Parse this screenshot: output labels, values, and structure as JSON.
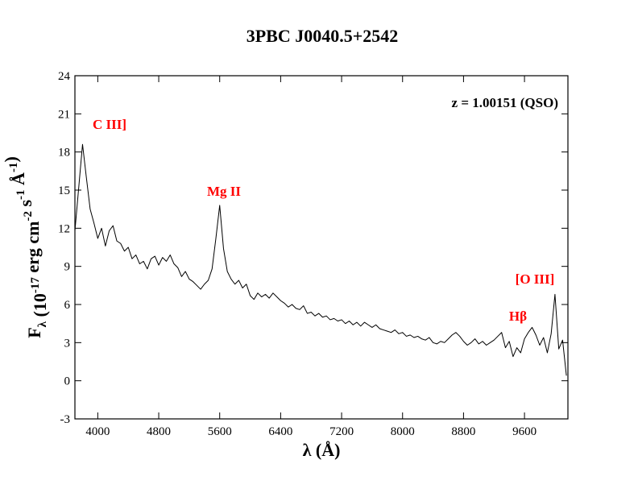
{
  "chart_data": {
    "type": "line",
    "title": "3PBC J0040.5+2542",
    "xlabel": [
      "λ (Å)"
    ],
    "ylabel": [
      "F",
      {
        "sub": "λ"
      },
      " (10",
      {
        "sup": "-17"
      },
      " erg cm",
      {
        "sup": "-2"
      },
      " s",
      {
        "sup": "-1"
      },
      " Å",
      {
        "sup": "-1"
      },
      ")"
    ],
    "annotations": [
      "z = 1.00151 (QSO)",
      "C III]",
      "Mg II",
      "Hβ",
      "[O III]"
    ],
    "xlim": [
      3700,
      10170
    ],
    "ylim": [
      -3,
      24
    ],
    "xticks": [
      4000,
      4800,
      5600,
      6400,
      7200,
      8000,
      8800,
      9600
    ],
    "yticks": [
      -3,
      0,
      3,
      6,
      9,
      12,
      15,
      18,
      21,
      24
    ],
    "series": [
      {
        "color": "#000000",
        "x": [
          3700,
          3750,
          3800,
          3850,
          3900,
          3950,
          4000,
          4050,
          4100,
          4150,
          4200,
          4250,
          4300,
          4350,
          4400,
          4450,
          4500,
          4550,
          4600,
          4650,
          4700,
          4750,
          4800,
          4850,
          4900,
          4950,
          5000,
          5050,
          5100,
          5150,
          5200,
          5250,
          5300,
          5350,
          5400,
          5450,
          5500,
          5550,
          5600,
          5650,
          5700,
          5750,
          5800,
          5850,
          5900,
          5950,
          6000,
          6050,
          6100,
          6150,
          6200,
          6250,
          6300,
          6350,
          6400,
          6450,
          6500,
          6550,
          6600,
          6650,
          6700,
          6750,
          6800,
          6850,
          6900,
          6950,
          7000,
          7050,
          7100,
          7150,
          7200,
          7250,
          7300,
          7350,
          7400,
          7450,
          7500,
          7550,
          7600,
          7650,
          7700,
          7750,
          7800,
          7850,
          7900,
          7950,
          8000,
          8050,
          8100,
          8150,
          8200,
          8250,
          8300,
          8350,
          8400,
          8450,
          8500,
          8550,
          8600,
          8650,
          8700,
          8750,
          8800,
          8850,
          8900,
          8950,
          9000,
          9050,
          9100,
          9150,
          9200,
          9250,
          9300,
          9350,
          9400,
          9450,
          9500,
          9550,
          9600,
          9650,
          9700,
          9750,
          9800,
          9850,
          9900,
          9950,
          10000,
          10050,
          10100,
          10150
        ],
        "values": [
          11.8,
          15.2,
          18.6,
          16.0,
          13.5,
          12.4,
          11.2,
          12.0,
          10.6,
          11.8,
          12.2,
          11.0,
          10.8,
          10.2,
          10.5,
          9.6,
          9.9,
          9.2,
          9.4,
          8.8,
          9.6,
          9.8,
          9.1,
          9.7,
          9.4,
          9.9,
          9.2,
          8.9,
          8.2,
          8.6,
          8.0,
          7.8,
          7.5,
          7.2,
          7.6,
          7.9,
          8.8,
          11.2,
          13.8,
          10.4,
          8.6,
          8.0,
          7.6,
          7.9,
          7.3,
          7.6,
          6.7,
          6.4,
          6.9,
          6.6,
          6.8,
          6.5,
          6.9,
          6.6,
          6.3,
          6.1,
          5.8,
          6.0,
          5.7,
          5.6,
          5.9,
          5.3,
          5.4,
          5.1,
          5.3,
          5.0,
          5.1,
          4.8,
          4.9,
          4.7,
          4.8,
          4.5,
          4.7,
          4.4,
          4.6,
          4.3,
          4.6,
          4.4,
          4.2,
          4.4,
          4.1,
          4.0,
          3.9,
          3.8,
          4.0,
          3.7,
          3.8,
          3.5,
          3.6,
          3.4,
          3.5,
          3.3,
          3.2,
          3.4,
          3.0,
          2.9,
          3.1,
          3.0,
          3.3,
          3.6,
          3.8,
          3.5,
          3.1,
          2.8,
          3.0,
          3.3,
          2.9,
          3.1,
          2.8,
          3.0,
          3.2,
          3.5,
          3.8,
          2.6,
          3.1,
          1.9,
          2.6,
          2.2,
          3.3,
          3.8,
          4.2,
          3.6,
          2.8,
          3.4,
          2.2,
          3.7,
          6.8,
          2.5,
          3.2,
          0.4
        ]
      }
    ]
  }
}
